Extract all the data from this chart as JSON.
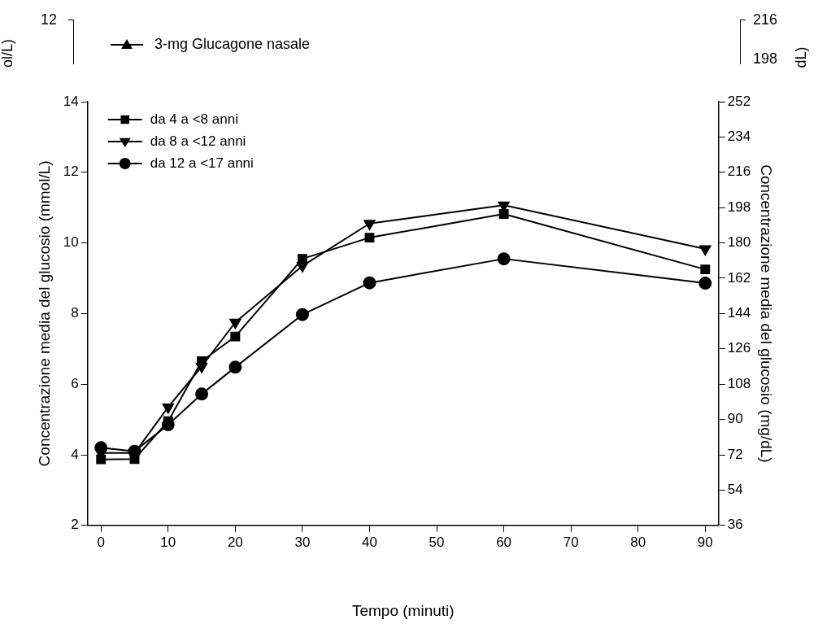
{
  "chart_data": [
    {
      "type": "other",
      "annotations": [
        "12",
        "ol/L)",
        "3-mg Glucagone nasale",
        "216",
        "198",
        "dL)"
      ]
    },
    {
      "type": "line",
      "xlabel": "Tempo (minuti)",
      "ylabel": "Concentrazione media del glucosio (mmol/L)",
      "y2label": "Concentrazione media del glucosio (mg/dL)",
      "x": [
        0,
        5,
        10,
        15,
        20,
        30,
        40,
        60,
        90
      ],
      "series": [
        {
          "name": "da 4 a <8 anni",
          "color": "#000000",
          "marker": "square",
          "values": [
            3.87,
            3.88,
            4.95,
            6.65,
            7.35,
            9.55,
            10.15,
            10.82,
            9.25
          ]
        },
        {
          "name": "da 8 a <12 anni",
          "color": "#000000",
          "marker": "triangle-down",
          "values": [
            4.05,
            4.05,
            5.35,
            6.5,
            7.75,
            9.35,
            10.55,
            11.07,
            9.83
          ]
        },
        {
          "name": "da 12 a <17 anni",
          "color": "#000000",
          "marker": "circle",
          "values": [
            4.2,
            4.1,
            4.85,
            5.72,
            6.48,
            7.97,
            8.87,
            9.55,
            8.86
          ]
        }
      ],
      "xlim": [
        -2,
        92
      ],
      "xticks": [
        0,
        10,
        20,
        30,
        40,
        50,
        60,
        70,
        80,
        90
      ],
      "ylim": [
        2,
        14
      ],
      "yticks": [
        2,
        4,
        6,
        8,
        10,
        12,
        14
      ],
      "y2lim": [
        36,
        252
      ],
      "y2ticks": [
        36,
        54,
        72,
        90,
        108,
        126,
        144,
        162,
        180,
        198,
        216,
        234,
        252
      ],
      "grid": false,
      "legend": "top left",
      "line_style": "solid"
    }
  ]
}
